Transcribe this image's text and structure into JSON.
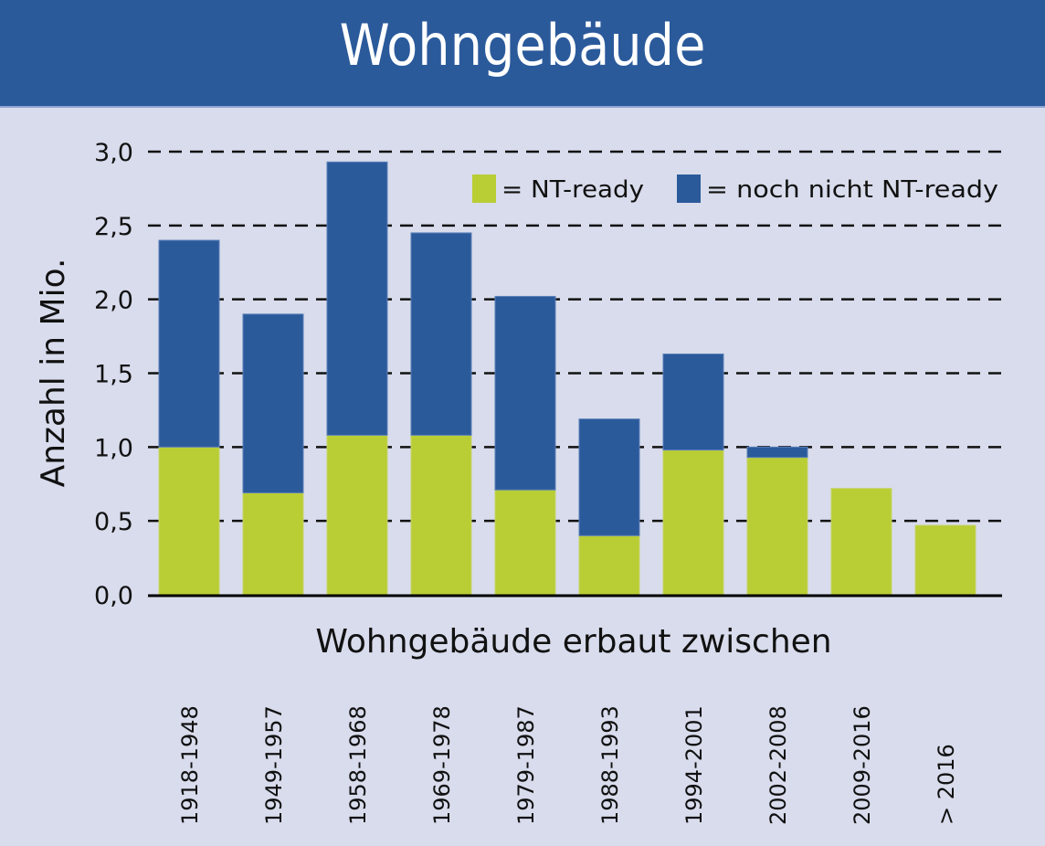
{
  "header": {
    "title": "Wohngebäude"
  },
  "colors": {
    "header_bg": "#2b5a9b",
    "background": "#d8dcec",
    "nt_ready": "#b9cd35",
    "not_nt_ready": "#2b5a9b"
  },
  "chart_data": {
    "type": "bar",
    "stacked": true,
    "title": "Wohngebäude",
    "xlabel": "Wohngebäude erbaut zwischen",
    "ylabel": "Anzahl in Mio.",
    "ylim": [
      0,
      3.0
    ],
    "yticks": [
      "0,0",
      "0,5",
      "1,0",
      "1,5",
      "2,0",
      "2,5",
      "3,0"
    ],
    "ytick_values": [
      0,
      0.5,
      1.0,
      1.5,
      2.0,
      2.5,
      3.0
    ],
    "grid": "dashed horizontal",
    "legend_position": "top-right",
    "categories": [
      "1918-1948",
      "1949-1957",
      "1958-1968",
      "1969-1978",
      "1979-1987",
      "1988-1993",
      "1994-2001",
      "2002-2008",
      "2009-2016",
      "> 2016"
    ],
    "series": [
      {
        "name": "= NT-ready",
        "color": "#b9cd35",
        "values": [
          1.0,
          0.69,
          1.08,
          1.08,
          0.71,
          0.4,
          0.98,
          0.93,
          0.72,
          0.47
        ]
      },
      {
        "name": "= noch nicht NT-ready",
        "color": "#2b5a9b",
        "values": [
          1.4,
          1.21,
          1.85,
          1.37,
          1.31,
          0.79,
          0.65,
          0.07,
          0,
          0
        ]
      }
    ]
  }
}
